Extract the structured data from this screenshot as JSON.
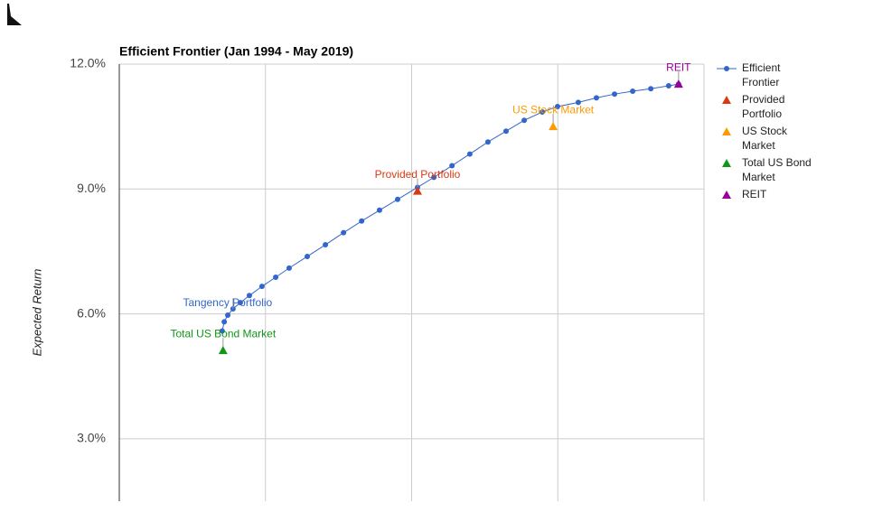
{
  "chart_data": {
    "type": "line",
    "title": "Efficient Frontier (Jan 1994 - May 2019)",
    "y_label": "Expected Return",
    "ylim": [
      1.5,
      12
    ],
    "yticks": [
      {
        "value": 3,
        "label": "3.0%"
      },
      {
        "value": 6,
        "label": "6.0%"
      },
      {
        "value": 9,
        "label": "9.0%"
      },
      {
        "value": 12,
        "label": "12.0%"
      }
    ],
    "xlim": [
      0,
      20
    ],
    "xticks": [
      5,
      10,
      15,
      20
    ],
    "grid": true,
    "legend": "right",
    "series": [
      {
        "name": "Efficient Frontier",
        "type": "line",
        "color": "#3366cc",
        "x": [
          3.52,
          3.59,
          3.71,
          3.89,
          4.14,
          4.45,
          4.88,
          5.35,
          5.81,
          6.43,
          7.05,
          7.67,
          8.29,
          8.9,
          9.52,
          10.2,
          10.76,
          11.38,
          11.99,
          12.61,
          13.23,
          13.85,
          14.47,
          14.99,
          15.7,
          16.32,
          16.94,
          17.56,
          18.18,
          18.79,
          19.13
        ],
        "values": [
          5.59,
          5.81,
          5.97,
          6.12,
          6.27,
          6.44,
          6.66,
          6.88,
          7.1,
          7.38,
          7.66,
          7.95,
          8.23,
          8.49,
          8.75,
          9.04,
          9.28,
          9.56,
          9.84,
          10.13,
          10.39,
          10.65,
          10.85,
          10.98,
          11.08,
          11.19,
          11.28,
          11.35,
          11.41,
          11.48,
          11.52
        ],
        "annotation": {
          "text": "Tangency Portfolio",
          "x": 3.89,
          "y": 6.12
        }
      },
      {
        "name": "Provided Portfolio",
        "type": "scatter",
        "color": "#dc3912",
        "x": [
          10.2
        ],
        "values": [
          8.95
        ],
        "annotation": "Provided Portfolio"
      },
      {
        "name": "US Stock Market",
        "type": "scatter",
        "color": "#ff9900",
        "x": [
          14.84
        ],
        "values": [
          10.5
        ],
        "annotation": "US Stock Market"
      },
      {
        "name": "Total US Bond Market",
        "type": "scatter",
        "color": "#109618",
        "x": [
          3.55
        ],
        "values": [
          5.12
        ],
        "annotation": "Total US Bond Market"
      },
      {
        "name": "REIT",
        "type": "scatter",
        "color": "#990099",
        "x": [
          19.13
        ],
        "values": [
          11.52
        ],
        "annotation": "REIT"
      }
    ]
  }
}
